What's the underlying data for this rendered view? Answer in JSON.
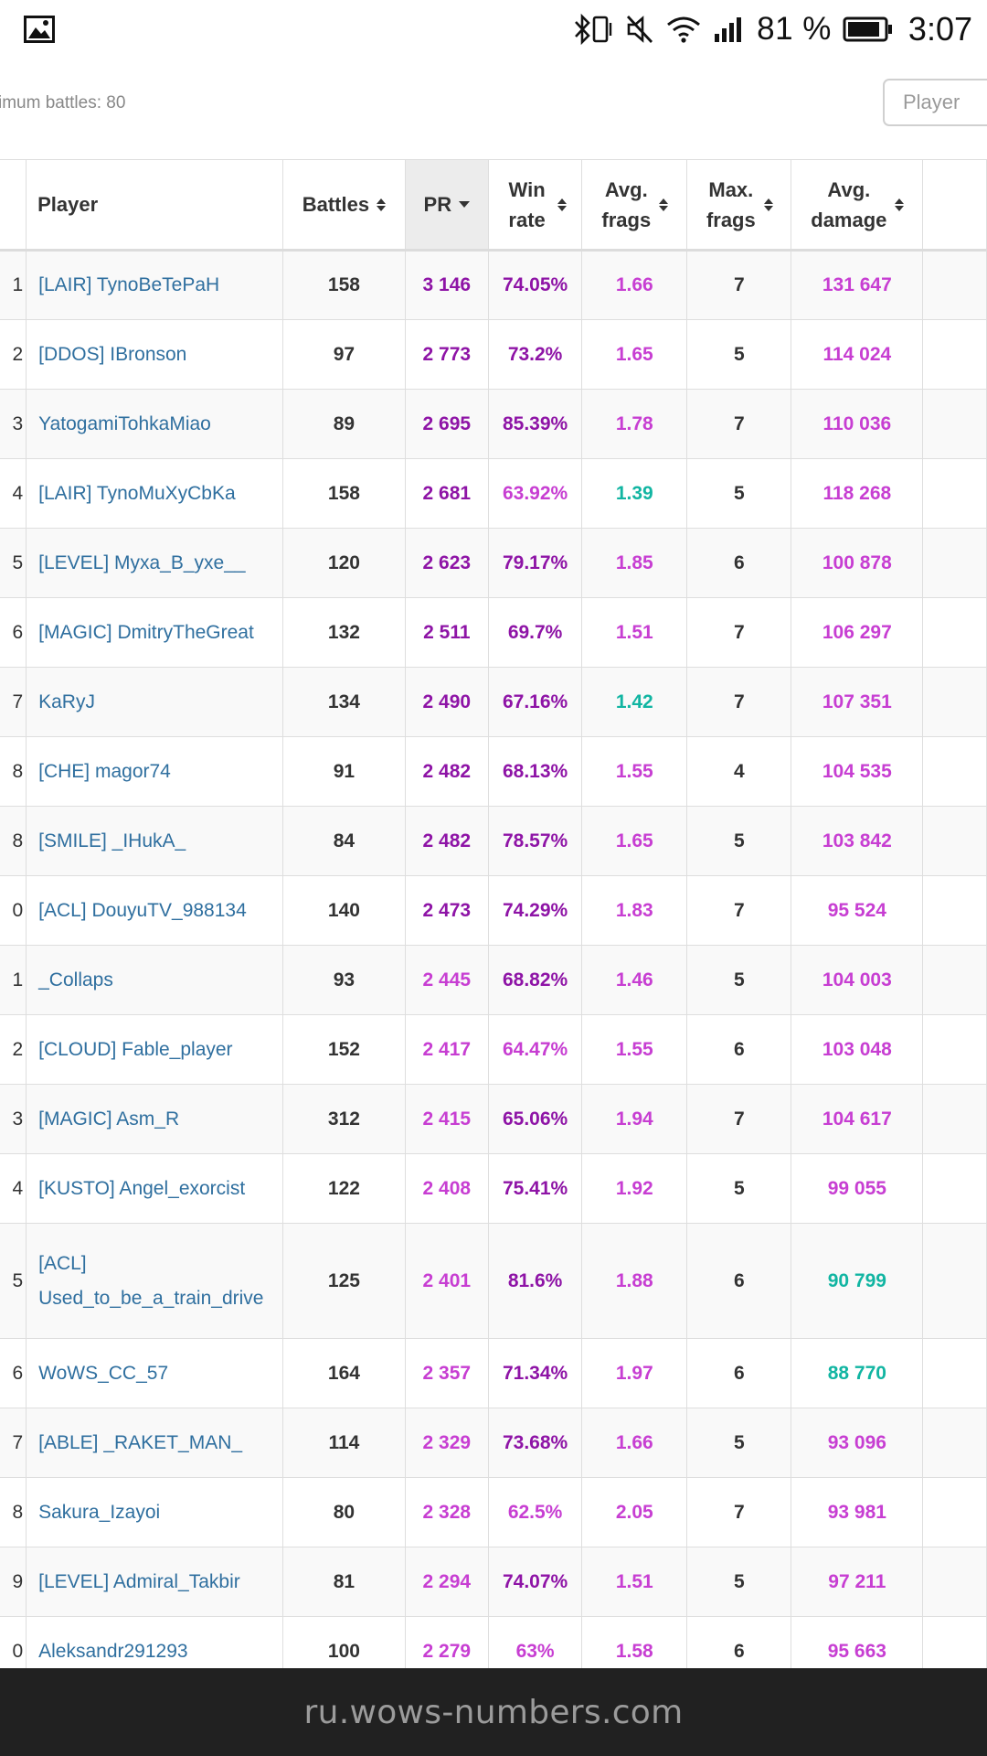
{
  "status_bar": {
    "battery_percent": "81 %",
    "time": "3:07",
    "icons": [
      "gallery-icon",
      "bluetooth-vibrate-icon",
      "mute-icon",
      "wifi-icon",
      "signal-icon",
      "battery-icon"
    ]
  },
  "filter": {
    "min_battles_text": "imum battles: 80",
    "search_placeholder": "Player"
  },
  "table": {
    "headers": {
      "player": "Player",
      "battles": "Battles",
      "pr": "PR",
      "win_rate": "Win rate",
      "avg_frags": "Avg. frags",
      "max_frags": "Max. frags",
      "avg_damage": "Avg. damage"
    },
    "active_sort": "pr",
    "colors": {
      "violet": "#8e14a6",
      "magenta": "#c73ed2",
      "teal": "#11b5a2",
      "link": "#2f6f9f"
    },
    "rows": [
      {
        "rank": "1",
        "player": "[LAIR] TynoBeTePaH",
        "battles": "158",
        "pr": "3 146",
        "pr_c": "violet",
        "win": "74.05%",
        "win_c": "violet",
        "af": "1.66",
        "af_c": "magenta",
        "mf": "7",
        "dmg": "131 647",
        "dmg_c": "magenta"
      },
      {
        "rank": "2",
        "player": "[DDOS] IBronson",
        "battles": "97",
        "pr": "2 773",
        "pr_c": "violet",
        "win": "73.2%",
        "win_c": "violet",
        "af": "1.65",
        "af_c": "magenta",
        "mf": "5",
        "dmg": "114 024",
        "dmg_c": "magenta"
      },
      {
        "rank": "3",
        "player": "YatogamiTohkaMiao",
        "battles": "89",
        "pr": "2 695",
        "pr_c": "violet",
        "win": "85.39%",
        "win_c": "violet",
        "af": "1.78",
        "af_c": "magenta",
        "mf": "7",
        "dmg": "110 036",
        "dmg_c": "magenta"
      },
      {
        "rank": "4",
        "player": "[LAIR] TynoMuXyCbKa",
        "battles": "158",
        "pr": "2 681",
        "pr_c": "violet",
        "win": "63.92%",
        "win_c": "magenta",
        "af": "1.39",
        "af_c": "teal",
        "mf": "5",
        "dmg": "118 268",
        "dmg_c": "magenta"
      },
      {
        "rank": "5",
        "player": "[LEVEL] Myxa_B_yxe__",
        "battles": "120",
        "pr": "2 623",
        "pr_c": "violet",
        "win": "79.17%",
        "win_c": "violet",
        "af": "1.85",
        "af_c": "magenta",
        "mf": "6",
        "dmg": "100 878",
        "dmg_c": "magenta"
      },
      {
        "rank": "6",
        "player": "[MAGIC] DmitryTheGreat",
        "battles": "132",
        "pr": "2 511",
        "pr_c": "violet",
        "win": "69.7%",
        "win_c": "violet",
        "af": "1.51",
        "af_c": "magenta",
        "mf": "7",
        "dmg": "106 297",
        "dmg_c": "magenta"
      },
      {
        "rank": "7",
        "player": "KaRyJ",
        "battles": "134",
        "pr": "2 490",
        "pr_c": "violet",
        "win": "67.16%",
        "win_c": "violet",
        "af": "1.42",
        "af_c": "teal",
        "mf": "7",
        "dmg": "107 351",
        "dmg_c": "magenta"
      },
      {
        "rank": "8",
        "player": "[CHE] magor74",
        "battles": "91",
        "pr": "2 482",
        "pr_c": "violet",
        "win": "68.13%",
        "win_c": "violet",
        "af": "1.55",
        "af_c": "magenta",
        "mf": "4",
        "dmg": "104 535",
        "dmg_c": "magenta"
      },
      {
        "rank": "8",
        "player": "[SMILE] _IHukA_",
        "battles": "84",
        "pr": "2 482",
        "pr_c": "violet",
        "win": "78.57%",
        "win_c": "violet",
        "af": "1.65",
        "af_c": "magenta",
        "mf": "5",
        "dmg": "103 842",
        "dmg_c": "magenta"
      },
      {
        "rank": "0",
        "player": "[ACL] DouyuTV_988134",
        "battles": "140",
        "pr": "2 473",
        "pr_c": "violet",
        "win": "74.29%",
        "win_c": "violet",
        "af": "1.83",
        "af_c": "magenta",
        "mf": "7",
        "dmg": "95 524",
        "dmg_c": "magenta"
      },
      {
        "rank": "1",
        "player": "_Collaps",
        "battles": "93",
        "pr": "2 445",
        "pr_c": "magenta",
        "win": "68.82%",
        "win_c": "violet",
        "af": "1.46",
        "af_c": "magenta",
        "mf": "5",
        "dmg": "104 003",
        "dmg_c": "magenta"
      },
      {
        "rank": "2",
        "player": "[CLOUD] Fable_player",
        "battles": "152",
        "pr": "2 417",
        "pr_c": "magenta",
        "win": "64.47%",
        "win_c": "magenta",
        "af": "1.55",
        "af_c": "magenta",
        "mf": "6",
        "dmg": "103 048",
        "dmg_c": "magenta"
      },
      {
        "rank": "3",
        "player": "[MAGIC] Asm_R",
        "battles": "312",
        "pr": "2 415",
        "pr_c": "magenta",
        "win": "65.06%",
        "win_c": "violet",
        "af": "1.94",
        "af_c": "magenta",
        "mf": "7",
        "dmg": "104 617",
        "dmg_c": "magenta"
      },
      {
        "rank": "4",
        "player": "[KUSTO] Angel_exorcist",
        "battles": "122",
        "pr": "2 408",
        "pr_c": "magenta",
        "win": "75.41%",
        "win_c": "violet",
        "af": "1.92",
        "af_c": "magenta",
        "mf": "5",
        "dmg": "99 055",
        "dmg_c": "magenta"
      },
      {
        "rank": "5",
        "player": "[ACL] Used_to_be_a_train_drive",
        "battles": "125",
        "pr": "2 401",
        "pr_c": "magenta",
        "win": "81.6%",
        "win_c": "violet",
        "af": "1.88",
        "af_c": "magenta",
        "mf": "6",
        "dmg": "90 799",
        "dmg_c": "teal",
        "tall": true
      },
      {
        "rank": "6",
        "player": "WoWS_CC_57",
        "battles": "164",
        "pr": "2 357",
        "pr_c": "magenta",
        "win": "71.34%",
        "win_c": "violet",
        "af": "1.97",
        "af_c": "magenta",
        "mf": "6",
        "dmg": "88 770",
        "dmg_c": "teal"
      },
      {
        "rank": "7",
        "player": "[ABLE] _RAKET_MAN_",
        "battles": "114",
        "pr": "2 329",
        "pr_c": "magenta",
        "win": "73.68%",
        "win_c": "violet",
        "af": "1.66",
        "af_c": "magenta",
        "mf": "5",
        "dmg": "93 096",
        "dmg_c": "magenta"
      },
      {
        "rank": "8",
        "player": "Sakura_Izayoi",
        "battles": "80",
        "pr": "2 328",
        "pr_c": "magenta",
        "win": "62.5%",
        "win_c": "magenta",
        "af": "2.05",
        "af_c": "magenta",
        "mf": "7",
        "dmg": "93 981",
        "dmg_c": "magenta"
      },
      {
        "rank": "9",
        "player": "[LEVEL] Admiral_Takbir",
        "battles": "81",
        "pr": "2 294",
        "pr_c": "magenta",
        "win": "74.07%",
        "win_c": "violet",
        "af": "1.51",
        "af_c": "magenta",
        "mf": "5",
        "dmg": "97 211",
        "dmg_c": "magenta"
      },
      {
        "rank": "0",
        "player": "Aleksandr291293",
        "battles": "100",
        "pr": "2 279",
        "pr_c": "magenta",
        "win": "63%",
        "win_c": "magenta",
        "af": "1.58",
        "af_c": "magenta",
        "mf": "6",
        "dmg": "95 663",
        "dmg_c": "magenta"
      }
    ]
  },
  "browser": {
    "url": "ru.wows-numbers.com"
  }
}
